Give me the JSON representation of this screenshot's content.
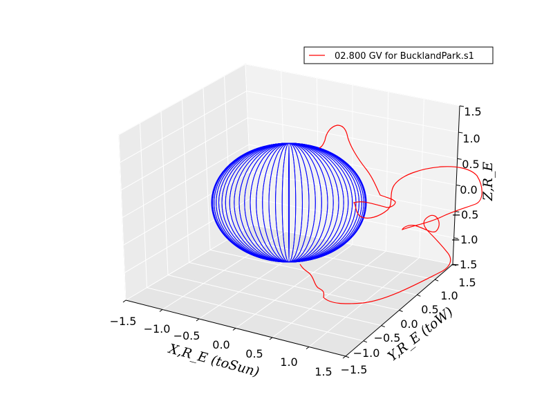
{
  "chart_data": {
    "type": "line",
    "projection": "3d",
    "legend": {
      "placement": "top-right",
      "entries": [
        {
          "label": "02.800 GV   for BucklandPark.s1",
          "color": "#ff0000"
        }
      ]
    },
    "axes": {
      "x": {
        "label": "X,R_E (toSun)",
        "ticks": [
          "−1.5",
          "−1.0",
          "−0.5",
          "0.0",
          "0.5",
          "1.0",
          "1.5"
        ],
        "lim": [
          -1.5,
          1.5
        ]
      },
      "y": {
        "label": "Y,R_E (toW)",
        "ticks": [
          "−1.5",
          "−1.0",
          "−0.5",
          "0.0",
          "0.5",
          "1.0",
          "1.5"
        ],
        "lim": [
          -1.5,
          1.5
        ]
      },
      "z": {
        "label": "Z,R_E",
        "ticks": [
          "−1.5",
          "−1.0",
          "−0.5",
          "0.0",
          "0.5",
          "1.0",
          "1.5"
        ],
        "lim": [
          -1.5,
          1.5
        ]
      }
    },
    "grid": true,
    "series": [
      {
        "kind": "sphere-wireframe",
        "color": "#0000ff",
        "radius": 1.0,
        "meridians": 36
      },
      {
        "kind": "trajectory",
        "name": "02.800 GV   for BucklandPark.s1",
        "color": "#ff0000"
      }
    ]
  }
}
